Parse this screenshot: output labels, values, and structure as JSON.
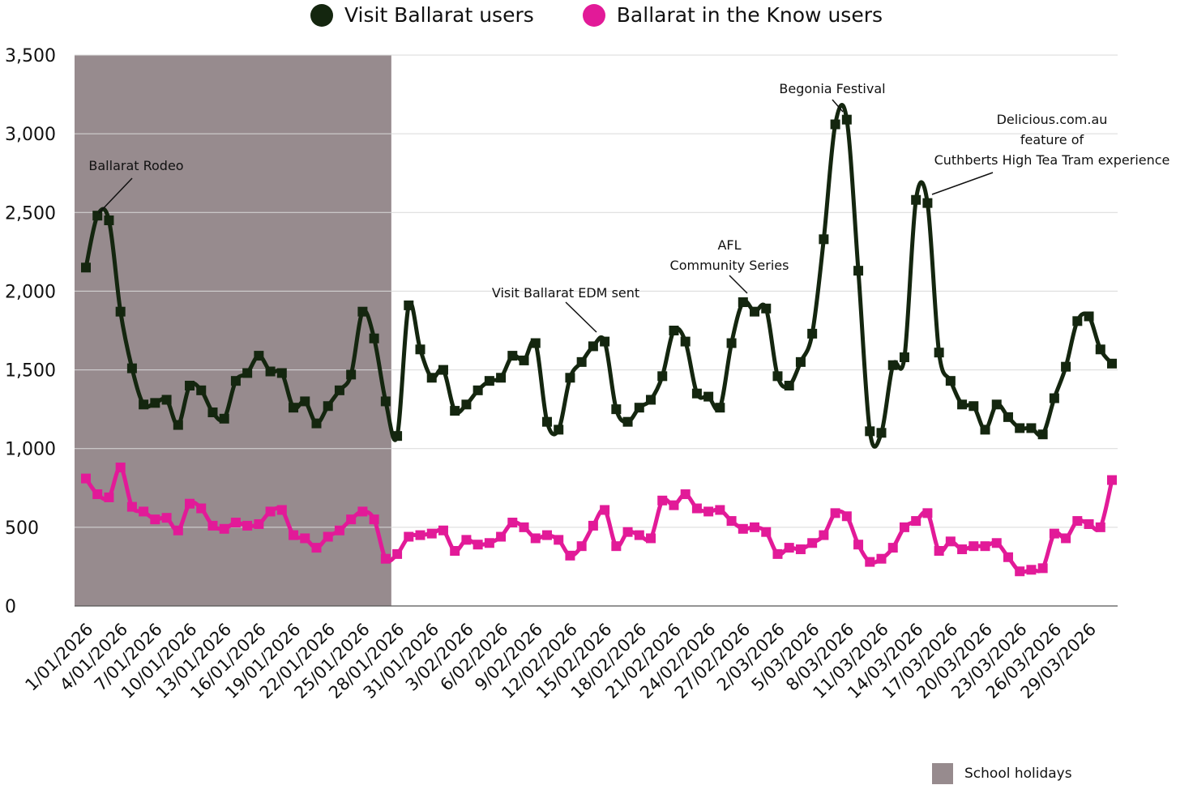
{
  "legend": {
    "series1": "Visit Ballarat users",
    "series2": "Ballarat in the Know users",
    "holidays": "School holidays"
  },
  "colors": {
    "visit": "#14260f",
    "know": "#e21a98",
    "holidays": "#978b8e",
    "grid": "#d9d9d9"
  },
  "chart_data": {
    "type": "line",
    "ylim": [
      0,
      3500
    ],
    "yticks": [
      "0",
      "500",
      "1,000",
      "1,500",
      "2,000",
      "2,500",
      "3,000",
      "3,500"
    ],
    "x_ticks": [
      "1/01/2026",
      "4/01/2026",
      "7/01/2026",
      "10/01/2026",
      "13/01/2026",
      "16/01/2026",
      "19/01/2026",
      "22/01/2026",
      "25/01/2026",
      "28/01/2026",
      "31/01/2026",
      "3/02/2026",
      "6/02/2026",
      "9/02/2026",
      "12/02/2026",
      "15/02/2026",
      "18/02/2026",
      "21/02/2026",
      "24/02/2026",
      "27/02/2026",
      "2/03/2026",
      "5/03/2026",
      "8/03/2026",
      "11/03/2026",
      "14/03/2026",
      "17/03/2026",
      "20/03/2026",
      "23/03/2026",
      "26/03/2026",
      "29/03/2026"
    ],
    "x_start": "1/01/2026",
    "x_end": "31/03/2026",
    "shaded_region": {
      "label": "School holidays",
      "from": "1/01/2026",
      "to": "27/01/2026"
    },
    "series": [
      {
        "name": "Visit Ballarat users",
        "values": [
          2150,
          2480,
          2450,
          1870,
          1510,
          1280,
          1290,
          1310,
          1150,
          1400,
          1370,
          1230,
          1190,
          1430,
          1480,
          1590,
          1490,
          1480,
          1260,
          1300,
          1160,
          1270,
          1370,
          1470,
          1870,
          1700,
          1300,
          1080,
          1910,
          1630,
          1450,
          1500,
          1240,
          1280,
          1370,
          1430,
          1450,
          1590,
          1560,
          1670,
          1170,
          1120,
          1450,
          1550,
          1650,
          1680,
          1250,
          1170,
          1260,
          1310,
          1460,
          1750,
          1680,
          1350,
          1330,
          1260,
          1670,
          1930,
          1870,
          1890,
          1460,
          1400,
          1550,
          1730,
          2330,
          3060,
          3090,
          2130,
          1110,
          1100,
          1530,
          1580,
          2580,
          2560,
          1610,
          1430,
          1280,
          1270,
          1120,
          1280,
          1200,
          1130,
          1130,
          1090,
          1320,
          1520,
          1810,
          1840,
          1630,
          1540
        ]
      },
      {
        "name": "Ballarat in the Know users",
        "values": [
          810,
          710,
          690,
          880,
          630,
          600,
          550,
          560,
          480,
          650,
          620,
          510,
          490,
          530,
          510,
          520,
          600,
          610,
          450,
          430,
          370,
          440,
          480,
          550,
          600,
          550,
          300,
          330,
          440,
          450,
          460,
          480,
          350,
          420,
          390,
          400,
          440,
          530,
          500,
          430,
          450,
          420,
          320,
          380,
          510,
          610,
          380,
          470,
          450,
          430,
          670,
          640,
          710,
          620,
          600,
          610,
          540,
          490,
          500,
          470,
          330,
          370,
          360,
          400,
          450,
          590,
          570,
          390,
          280,
          300,
          370,
          500,
          540,
          590,
          350,
          410,
          360,
          380,
          380,
          400,
          310,
          220,
          230,
          240,
          460,
          430,
          540,
          520,
          500,
          800
        ]
      }
    ],
    "annotations": [
      {
        "text": "Ballarat Rodeo",
        "index": 1
      },
      {
        "text": "Visit Ballarat EDM sent",
        "index": 45
      },
      {
        "text": "AFL\nCommunity Series",
        "index": 57
      },
      {
        "text": "Begonia Festival",
        "index": 66
      },
      {
        "text": "Delicious.com.au\nfeature of\nCuthberts High Tea Tram experience",
        "index": 73
      }
    ]
  }
}
